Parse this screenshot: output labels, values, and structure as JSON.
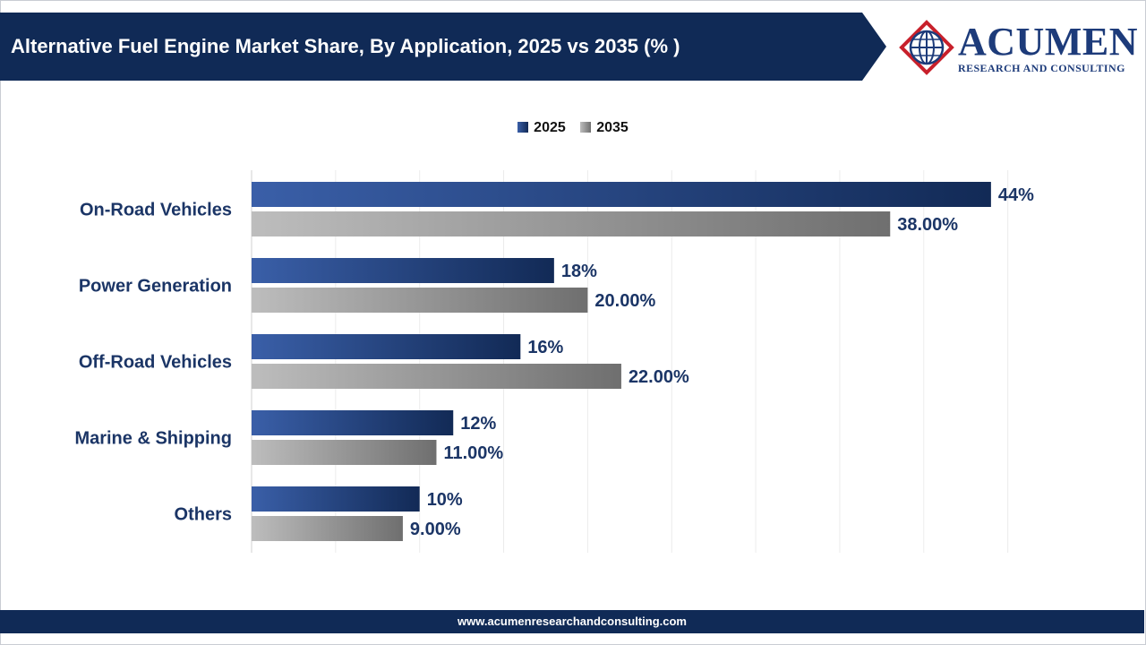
{
  "header": {
    "title": "Alternative Fuel Engine Market Share, By Application, 2025 vs 2035 (% )"
  },
  "logo": {
    "name": "ACUMEN",
    "subtitle": "RESEARCH AND CONSULTING"
  },
  "footer": {
    "url": "www.acumenresearchandconsulting.com"
  },
  "colors": {
    "header_bg": "#102a56",
    "series_2025": "#1d3b74",
    "series_2035": "#7f7f7f",
    "logo_red": "#c8202b",
    "logo_blue": "#1d3b7a"
  },
  "chart_data": {
    "type": "bar",
    "orientation": "horizontal",
    "title": "Alternative Fuel Engine Market Share, By Application, 2025 vs 2035 (% )",
    "categories": [
      "On-Road Vehicles",
      "Power Generation",
      "Off-Road Vehicles",
      "Marine & Shipping",
      "Others"
    ],
    "series": [
      {
        "name": "2025",
        "values": [
          44,
          18,
          16,
          12,
          10
        ],
        "labels": [
          "44%",
          "18%",
          "16%",
          "12%",
          "10%"
        ]
      },
      {
        "name": "2035",
        "values": [
          38,
          20,
          22,
          11,
          9
        ],
        "labels": [
          "38.00%",
          "20.00%",
          "22.00%",
          "11.00%",
          "9.00%"
        ]
      }
    ],
    "xlim": [
      0,
      45
    ],
    "grid": true,
    "legend_position": "top-center"
  }
}
